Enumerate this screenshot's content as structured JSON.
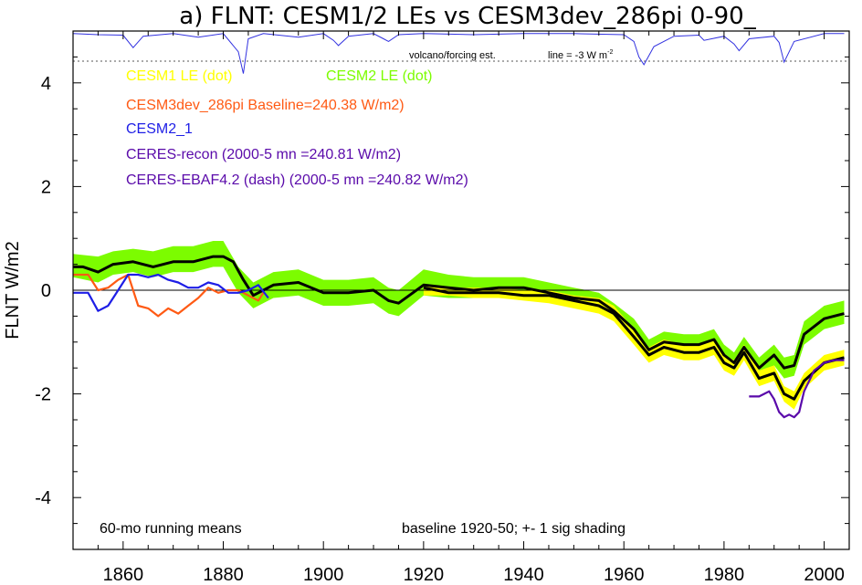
{
  "chart_data": {
    "type": "line",
    "title": "a) FLNT: CESM1/2 LEs vs CESM3dev_286pi 0-90_",
    "xlabel": "",
    "ylabel": "FLNT W/m2",
    "xlim": [
      1850,
      2005
    ],
    "ylim": [
      -5,
      5
    ],
    "x_ticks": [
      1860,
      1880,
      1900,
      1920,
      1940,
      1960,
      1980,
      2000
    ],
    "y_ticks": [
      4,
      2,
      0,
      -2,
      -4
    ],
    "y_tick_labels": [
      "4",
      "2",
      "0",
      "-2",
      "-4"
    ],
    "grid": false,
    "zero_line": 0,
    "legend": {
      "placement": "top-left",
      "entries": [
        {
          "label": "CESM1 LE (dot)",
          "color": "#ffff00"
        },
        {
          "label": "CESM2 LE (dot)",
          "color": "#7cfc00"
        },
        {
          "label": "CESM3dev_286pi Baseline=240.38 W/m2)",
          "color": "#ff5a14"
        },
        {
          "label": "CESM2_1",
          "color": "#1e1ee6"
        },
        {
          "label": "CERES-recon (2000-5 mn =240.81 W/m2)",
          "color": "#5a0aaa"
        },
        {
          "label": "CERES-EBAF4.2 (dash) (2000-5 mn =240.82 W/m2)",
          "color": "#5a0aaa"
        }
      ]
    },
    "annotations": {
      "volcano_label": "volcano/forcing est.",
      "line_label": "line = -3 W m",
      "line_label_sup": "-2",
      "running_means": "60-mo running means",
      "baseline_note": "baseline 1920-50; +- 1 sig shading",
      "volcano_ref_level": 4.42
    },
    "series": [
      {
        "name": "CESM1 LE (dot)",
        "color": "#ffff00",
        "role": "spread band",
        "x": [
          1920,
          1925,
          1930,
          1935,
          1940,
          1945,
          1950,
          1955,
          1958,
          1962,
          1965,
          1968,
          1972,
          1975,
          1978,
          1980,
          1982,
          1984,
          1987,
          1990,
          1992,
          1994,
          1996,
          2000,
          2004
        ],
        "lower": [
          -0.1,
          -0.1,
          -0.15,
          -0.15,
          -0.2,
          -0.25,
          -0.35,
          -0.45,
          -0.6,
          -1.05,
          -1.4,
          -1.25,
          -1.35,
          -1.35,
          -1.25,
          -1.55,
          -1.65,
          -1.35,
          -1.85,
          -1.75,
          -2.15,
          -2.3,
          -1.9,
          -1.55,
          -1.45
        ],
        "upper": [
          0.1,
          0.05,
          0.05,
          0.05,
          0.0,
          0.0,
          -0.1,
          -0.15,
          -0.3,
          -0.75,
          -1.1,
          -0.95,
          -1.05,
          -1.05,
          -0.95,
          -1.25,
          -1.35,
          -1.05,
          -1.55,
          -1.45,
          -1.85,
          -1.95,
          -1.6,
          -1.25,
          -1.15
        ]
      },
      {
        "name": "CESM2 LE (dot)",
        "color": "#7cfc00",
        "role": "spread band",
        "x": [
          1850,
          1855,
          1858,
          1862,
          1866,
          1870,
          1874,
          1878,
          1880,
          1883,
          1886,
          1890,
          1895,
          1900,
          1905,
          1910,
          1913,
          1915,
          1920,
          1925,
          1930,
          1935,
          1940,
          1945,
          1950,
          1955,
          1958,
          1962,
          1965,
          1968,
          1972,
          1975,
          1978,
          1980,
          1982,
          1984,
          1987,
          1990,
          1992,
          1994,
          1996,
          2000,
          2004
        ],
        "lower": [
          0.25,
          0.15,
          0.3,
          0.35,
          0.25,
          0.35,
          0.35,
          0.45,
          0.45,
          -0.05,
          -0.35,
          -0.15,
          -0.1,
          -0.3,
          -0.3,
          -0.25,
          -0.45,
          -0.5,
          -0.1,
          -0.15,
          -0.15,
          -0.15,
          -0.15,
          -0.2,
          -0.3,
          -0.35,
          -0.55,
          -0.95,
          -1.35,
          -1.2,
          -1.25,
          -1.25,
          -1.15,
          -1.45,
          -1.6,
          -1.3,
          -1.7,
          -1.45,
          -1.7,
          -1.65,
          -1.05,
          -0.75,
          -0.65
        ],
        "upper": [
          0.7,
          0.65,
          0.75,
          0.8,
          0.75,
          0.85,
          0.85,
          0.95,
          0.95,
          0.45,
          0.15,
          0.35,
          0.4,
          0.2,
          0.2,
          0.25,
          0.05,
          0.0,
          0.4,
          0.3,
          0.25,
          0.25,
          0.25,
          0.15,
          0.05,
          -0.05,
          -0.25,
          -0.55,
          -0.95,
          -0.8,
          -0.85,
          -0.85,
          -0.75,
          -1.05,
          -1.2,
          -0.9,
          -1.3,
          -1.05,
          -1.3,
          -1.25,
          -0.6,
          -0.3,
          -0.2
        ]
      },
      {
        "name": "CESM1 LE mean",
        "color": "#000000",
        "x": [
          1920,
          1925,
          1930,
          1935,
          1940,
          1945,
          1950,
          1955,
          1958,
          1962,
          1965,
          1968,
          1972,
          1975,
          1978,
          1980,
          1982,
          1984,
          1987,
          1990,
          1992,
          1994,
          1996,
          2000,
          2004
        ],
        "y": [
          0.05,
          -0.05,
          -0.05,
          -0.05,
          -0.1,
          -0.1,
          -0.2,
          -0.3,
          -0.45,
          -0.9,
          -1.25,
          -1.1,
          -1.2,
          -1.2,
          -1.1,
          -1.4,
          -1.5,
          -1.2,
          -1.7,
          -1.6,
          -2.0,
          -2.1,
          -1.75,
          -1.4,
          -1.3
        ]
      },
      {
        "name": "CESM2 LE mean",
        "color": "#000000",
        "x": [
          1850,
          1852,
          1855,
          1858,
          1862,
          1866,
          1870,
          1874,
          1878,
          1880,
          1882,
          1884,
          1886,
          1890,
          1895,
          1900,
          1905,
          1910,
          1913,
          1915,
          1920,
          1925,
          1930,
          1935,
          1940,
          1945,
          1950,
          1955,
          1958,
          1962,
          1965,
          1968,
          1972,
          1975,
          1978,
          1980,
          1982,
          1984,
          1987,
          1990,
          1992,
          1994,
          1996,
          2000,
          2004
        ],
        "y": [
          0.45,
          0.45,
          0.35,
          0.5,
          0.55,
          0.45,
          0.55,
          0.55,
          0.65,
          0.65,
          0.55,
          0.2,
          -0.1,
          0.1,
          0.15,
          -0.05,
          -0.05,
          0.0,
          -0.2,
          -0.25,
          0.1,
          0.05,
          0.0,
          0.05,
          0.05,
          -0.05,
          -0.15,
          -0.2,
          -0.4,
          -0.75,
          -1.15,
          -1.0,
          -1.05,
          -1.05,
          -0.95,
          -1.25,
          -1.4,
          -1.1,
          -1.5,
          -1.25,
          -1.5,
          -1.45,
          -0.85,
          -0.55,
          -0.45
        ]
      },
      {
        "name": "CESM3dev_286pi Baseline=240.38 W/m2)",
        "color": "#ff5a14",
        "x": [
          1850,
          1853,
          1855,
          1857,
          1859,
          1861,
          1863,
          1865,
          1867,
          1869,
          1871,
          1873,
          1875,
          1877,
          1879,
          1881,
          1883,
          1885,
          1887,
          1888
        ],
        "y": [
          0.3,
          0.3,
          0.0,
          0.05,
          0.2,
          0.3,
          -0.3,
          -0.35,
          -0.5,
          -0.35,
          -0.45,
          -0.3,
          -0.15,
          0.05,
          -0.05,
          0.0,
          0.0,
          -0.1,
          -0.2,
          -0.05
        ]
      },
      {
        "name": "CESM2_1",
        "color": "#1e1ee6",
        "x": [
          1850,
          1853,
          1855,
          1857,
          1859,
          1861,
          1863,
          1865,
          1867,
          1869,
          1871,
          1873,
          1875,
          1877,
          1879,
          1881,
          1883,
          1885,
          1887,
          1889
        ],
        "y": [
          -0.05,
          -0.05,
          -0.4,
          -0.3,
          0.0,
          0.3,
          0.3,
          0.25,
          0.3,
          0.2,
          0.15,
          0.05,
          0.05,
          0.15,
          0.1,
          -0.05,
          -0.05,
          0.0,
          0.1,
          -0.15
        ]
      },
      {
        "name": "CERES-recon (2000-5 mn =240.81 W/m2)",
        "color": "#5a0aaa",
        "x": [
          1985,
          1987,
          1988,
          1989,
          1990,
          1991,
          1992,
          1993,
          1994,
          1995,
          1996,
          1998,
          2000,
          2002,
          2004
        ],
        "y": [
          -2.05,
          -2.05,
          -2.0,
          -1.95,
          -2.1,
          -2.35,
          -2.45,
          -2.4,
          -2.45,
          -2.35,
          -1.95,
          -1.55,
          -1.4,
          -1.35,
          -1.35
        ]
      }
    ],
    "volcano_forcing": {
      "name": "volcano/forcing est.",
      "color": "#3232e0",
      "x": [
        1850,
        1855,
        1860,
        1862,
        1864,
        1870,
        1875,
        1880,
        1883,
        1884,
        1885,
        1888,
        1895,
        1900,
        1902,
        1903,
        1905,
        1910,
        1912,
        1913,
        1915,
        1920,
        1930,
        1940,
        1950,
        1960,
        1962,
        1963,
        1964,
        1966,
        1970,
        1975,
        1976,
        1980,
        1982,
        1983,
        1985,
        1990,
        1991,
        1992,
        1994,
        2000,
        2004
      ],
      "y": [
        4.95,
        4.93,
        4.92,
        4.68,
        4.9,
        4.95,
        4.88,
        4.95,
        4.6,
        4.18,
        4.85,
        4.95,
        4.88,
        4.95,
        4.82,
        4.72,
        4.9,
        4.95,
        4.85,
        4.8,
        4.93,
        4.95,
        4.93,
        4.95,
        4.95,
        4.93,
        4.8,
        4.5,
        4.35,
        4.7,
        4.9,
        4.92,
        4.82,
        4.9,
        4.75,
        4.62,
        4.85,
        4.9,
        4.78,
        4.4,
        4.8,
        4.95,
        4.95
      ]
    }
  }
}
